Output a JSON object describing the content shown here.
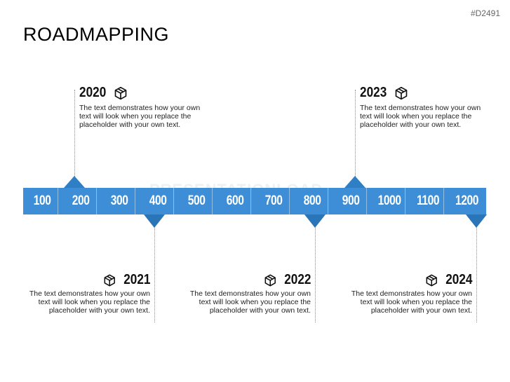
{
  "header": {
    "code": "#D2491",
    "title": "ROADMAPPING"
  },
  "watermark": "PRESENTATIONLOAD",
  "scale": [
    "100",
    "200",
    "300",
    "400",
    "500",
    "600",
    "700",
    "800",
    "900",
    "1000",
    "1100",
    "1200"
  ],
  "milestones": [
    {
      "year": "2020",
      "text": "The text demonstrates how your own text will look when you replace the placeholder with your own text.",
      "icon": "package-icon"
    },
    {
      "year": "2021",
      "text": "The text demonstrates how your own text will look when you replace the placeholder with your own text.",
      "icon": "package-icon"
    },
    {
      "year": "2022",
      "text": "The text demonstrates how your own text will look when you replace the placeholder with your own text.",
      "icon": "package-icon"
    },
    {
      "year": "2023",
      "text": "The text demonstrates how your own text will look when you replace the placeholder with your own text.",
      "icon": "package-icon"
    },
    {
      "year": "2024",
      "text": "The text demonstrates how your own text will look when you replace the placeholder with your own text.",
      "icon": "package-icon"
    }
  ],
  "colors": {
    "bar": "#3d8ed6",
    "marker": "#2f7fc6",
    "text": "#111111"
  }
}
